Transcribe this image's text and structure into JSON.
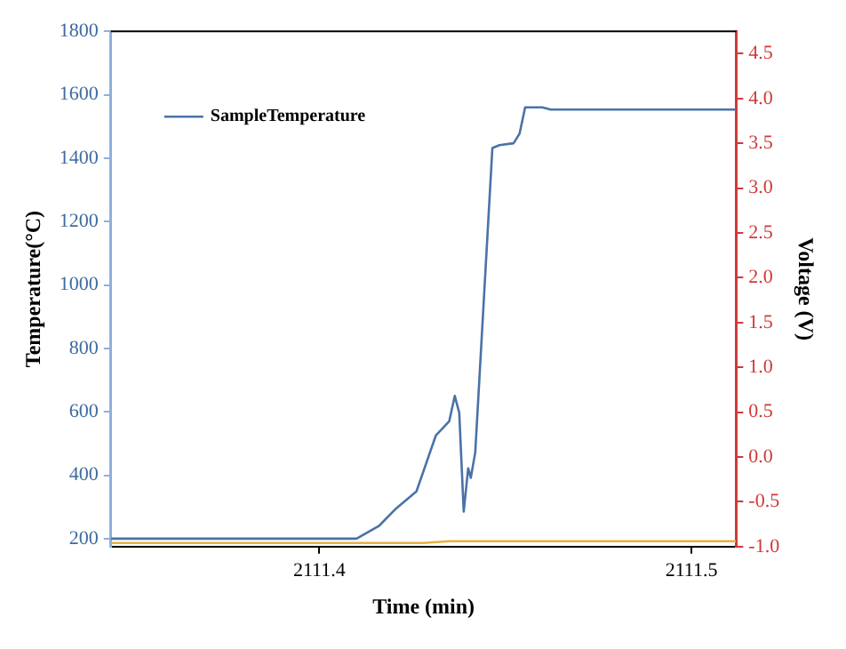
{
  "chart_data": {
    "type": "line",
    "xlabel": "Time (min)",
    "ylabel": "Temperature(°C)",
    "y2label": "Voltage (V)",
    "xlim": [
      2111.344,
      2111.512
    ],
    "xticks": [
      2111.4,
      2111.5
    ],
    "ylim": [
      175,
      1800
    ],
    "yticks": [
      200,
      400,
      600,
      800,
      1000,
      1200,
      1400,
      1600,
      1800
    ],
    "y2lim": [
      -1.0,
      4.75
    ],
    "y2ticks": [
      {
        "value": -1,
        "label": "-1.0"
      },
      {
        "value": -0.5,
        "label": "-0.5"
      },
      {
        "value": 0,
        "label": "0.0"
      },
      {
        "value": 0.5,
        "label": "0.5"
      },
      {
        "value": 1,
        "label": "1.0"
      },
      {
        "value": 1.5,
        "label": "1.5"
      },
      {
        "value": 2,
        "label": "2.0"
      },
      {
        "value": 2.5,
        "label": "2.5"
      },
      {
        "value": 3,
        "label": "3.0"
      },
      {
        "value": 3.5,
        "label": "3.5"
      },
      {
        "value": 4,
        "label": "4.0"
      },
      {
        "value": 4.5,
        "label": "4.5"
      }
    ],
    "series": [
      {
        "name": "SampleTemperature",
        "color": "#4a72a8",
        "x": [
          2111.344,
          2111.41,
          2111.4161,
          2111.4207,
          2111.4261,
          2111.4313,
          2111.4349,
          2111.4364,
          2111.4376,
          2111.4388,
          2111.44,
          2111.4407,
          2111.4419,
          2111.4442,
          2111.4465,
          2111.4484,
          2111.4522,
          2111.4538,
          2111.4553,
          2111.4599,
          2111.4622,
          2111.512
        ],
        "values": [
          200,
          200,
          241,
          296,
          349,
          525,
          570,
          650,
          597,
          285,
          422,
          392,
          472,
          952,
          1432,
          1441,
          1447,
          1477,
          1560,
          1560,
          1553,
          1553
        ]
      },
      {
        "color": "#e8b040",
        "axis": "y2",
        "x": [
          2111.344,
          2111.428,
          2111.435,
          2111.512
        ],
        "values": [
          -0.96,
          -0.96,
          -0.94,
          -0.94
        ]
      }
    ],
    "grid": false,
    "legend": "top left",
    "marker": "none",
    "line_style": "solid"
  }
}
